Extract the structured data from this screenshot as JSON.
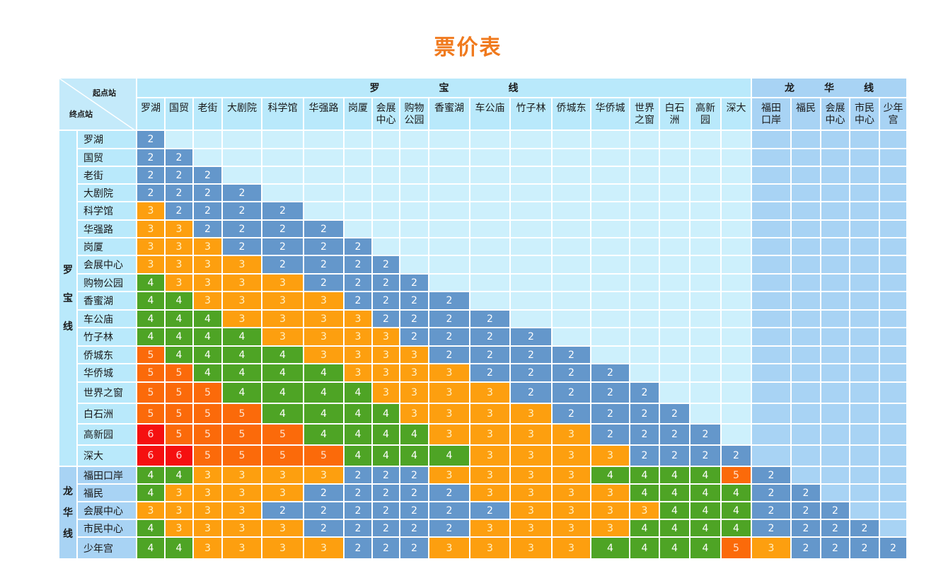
{
  "title": "票价表",
  "corner": {
    "from_label": "起点站",
    "to_label": "终点站"
  },
  "lines": [
    {
      "name": "罗宝线",
      "label_spaced": "罗　　　　　　宝　　　　　　线",
      "vertical": [
        "罗",
        "宝",
        "线"
      ],
      "column_count": 18
    },
    {
      "name": "龙华线",
      "label_spaced": "龙　　　华　　　线",
      "vertical": [
        "龙",
        "华",
        "线"
      ],
      "column_count": 5
    }
  ],
  "columns": [
    {
      "label": "罗湖",
      "line": "罗宝线"
    },
    {
      "label": "国贸",
      "line": "罗宝线"
    },
    {
      "label": "老街",
      "line": "罗宝线"
    },
    {
      "label": "大剧院",
      "line": "罗宝线"
    },
    {
      "label": "科学馆",
      "line": "罗宝线"
    },
    {
      "label": "华强路",
      "line": "罗宝线"
    },
    {
      "label": "岗厦",
      "line": "罗宝线"
    },
    {
      "label": "会展\n中心",
      "line": "罗宝线"
    },
    {
      "label": "购物\n公园",
      "line": "罗宝线"
    },
    {
      "label": "香蜜湖",
      "line": "罗宝线"
    },
    {
      "label": "车公庙",
      "line": "罗宝线"
    },
    {
      "label": "竹子林",
      "line": "罗宝线"
    },
    {
      "label": "侨城东",
      "line": "罗宝线"
    },
    {
      "label": "华侨城",
      "line": "罗宝线"
    },
    {
      "label": "世界\n之窗",
      "line": "罗宝线"
    },
    {
      "label": "白石\n洲",
      "line": "罗宝线"
    },
    {
      "label": "高新\n园",
      "line": "罗宝线"
    },
    {
      "label": "深大",
      "line": "罗宝线"
    },
    {
      "label": "福田\n口岸",
      "line": "龙华线"
    },
    {
      "label": "福民",
      "line": "龙华线"
    },
    {
      "label": "会展\n中心",
      "line": "龙华线"
    },
    {
      "label": "市民\n中心",
      "line": "龙华线"
    },
    {
      "label": "少年\n宫",
      "line": "龙华线"
    }
  ],
  "rows": [
    {
      "station": "罗湖",
      "line": "罗宝线",
      "fares": [
        2
      ]
    },
    {
      "station": "国贸",
      "line": "罗宝线",
      "fares": [
        2,
        2
      ]
    },
    {
      "station": "老街",
      "line": "罗宝线",
      "fares": [
        2,
        2,
        2
      ]
    },
    {
      "station": "大剧院",
      "line": "罗宝线",
      "fares": [
        2,
        2,
        2,
        2
      ]
    },
    {
      "station": "科学馆",
      "line": "罗宝线",
      "fares": [
        3,
        2,
        2,
        2,
        2
      ]
    },
    {
      "station": "华强路",
      "line": "罗宝线",
      "fares": [
        3,
        3,
        2,
        2,
        2,
        2
      ]
    },
    {
      "station": "岗厦",
      "line": "罗宝线",
      "fares": [
        3,
        3,
        3,
        2,
        2,
        2,
        2
      ]
    },
    {
      "station": "会展中心",
      "line": "罗宝线",
      "fares": [
        3,
        3,
        3,
        3,
        2,
        2,
        2,
        2
      ]
    },
    {
      "station": "购物公园",
      "line": "罗宝线",
      "fares": [
        4,
        3,
        3,
        3,
        3,
        2,
        2,
        2,
        2
      ]
    },
    {
      "station": "香蜜湖",
      "line": "罗宝线",
      "fares": [
        4,
        4,
        3,
        3,
        3,
        3,
        2,
        2,
        2,
        2
      ]
    },
    {
      "station": "车公庙",
      "line": "罗宝线",
      "fares": [
        4,
        4,
        4,
        3,
        3,
        3,
        3,
        2,
        2,
        2,
        2
      ]
    },
    {
      "station": "竹子林",
      "line": "罗宝线",
      "fares": [
        4,
        4,
        4,
        4,
        3,
        3,
        3,
        3,
        2,
        2,
        2,
        2
      ]
    },
    {
      "station": "侨城东",
      "line": "罗宝线",
      "fares": [
        5,
        4,
        4,
        4,
        4,
        3,
        3,
        3,
        3,
        2,
        2,
        2,
        2
      ]
    },
    {
      "station": "华侨城",
      "line": "罗宝线",
      "fares": [
        5,
        5,
        4,
        4,
        4,
        4,
        3,
        3,
        3,
        3,
        2,
        2,
        2,
        2
      ]
    },
    {
      "station": "世界之窗",
      "line": "罗宝线",
      "fares": [
        5,
        5,
        5,
        4,
        4,
        4,
        4,
        3,
        3,
        3,
        3,
        2,
        2,
        2,
        2
      ]
    },
    {
      "station": "白石洲",
      "line": "罗宝线",
      "fares": [
        5,
        5,
        5,
        5,
        4,
        4,
        4,
        4,
        3,
        3,
        3,
        3,
        2,
        2,
        2,
        2
      ]
    },
    {
      "station": "高新园",
      "line": "罗宝线",
      "fares": [
        6,
        5,
        5,
        5,
        5,
        4,
        4,
        4,
        4,
        3,
        3,
        3,
        3,
        2,
        2,
        2,
        2
      ]
    },
    {
      "station": "深大",
      "line": "罗宝线",
      "fares": [
        6,
        6,
        5,
        5,
        5,
        5,
        4,
        4,
        4,
        4,
        3,
        3,
        3,
        3,
        2,
        2,
        2,
        2
      ]
    },
    {
      "station": "福田口岸",
      "line": "龙华线",
      "fares": [
        4,
        4,
        3,
        3,
        3,
        3,
        2,
        2,
        2,
        3,
        3,
        3,
        3,
        4,
        4,
        4,
        4,
        5,
        2
      ]
    },
    {
      "station": "福民",
      "line": "龙华线",
      "fares": [
        4,
        3,
        3,
        3,
        3,
        2,
        2,
        2,
        2,
        2,
        3,
        3,
        3,
        3,
        4,
        4,
        4,
        4,
        2,
        2
      ]
    },
    {
      "station": "会展中心",
      "line": "龙华线",
      "fares": [
        3,
        3,
        3,
        3,
        2,
        2,
        2,
        2,
        2,
        2,
        2,
        3,
        3,
        3,
        3,
        4,
        4,
        4,
        2,
        2,
        2
      ]
    },
    {
      "station": "市民中心",
      "line": "龙华线",
      "fares": [
        4,
        3,
        3,
        3,
        3,
        2,
        2,
        2,
        2,
        2,
        3,
        3,
        3,
        3,
        4,
        4,
        4,
        4,
        2,
        2,
        2,
        2
      ]
    },
    {
      "station": "少年宫",
      "line": "龙华线",
      "fares": [
        4,
        4,
        3,
        3,
        3,
        3,
        2,
        2,
        2,
        3,
        3,
        3,
        3,
        4,
        4,
        4,
        4,
        5,
        3,
        2,
        2,
        2,
        2
      ]
    }
  ],
  "fare_colors": {
    "2": "#6497cb",
    "3": "#fd9f0f",
    "4": "#4ea425",
    "5": "#fb6a0a",
    "6": "#f51010"
  },
  "colors": {
    "title": "#f07a1e",
    "luobao_bg": "#b9e9fb",
    "longhua_bg": "#a8d3f4",
    "empty_luobao": "#cdf0fc"
  }
}
